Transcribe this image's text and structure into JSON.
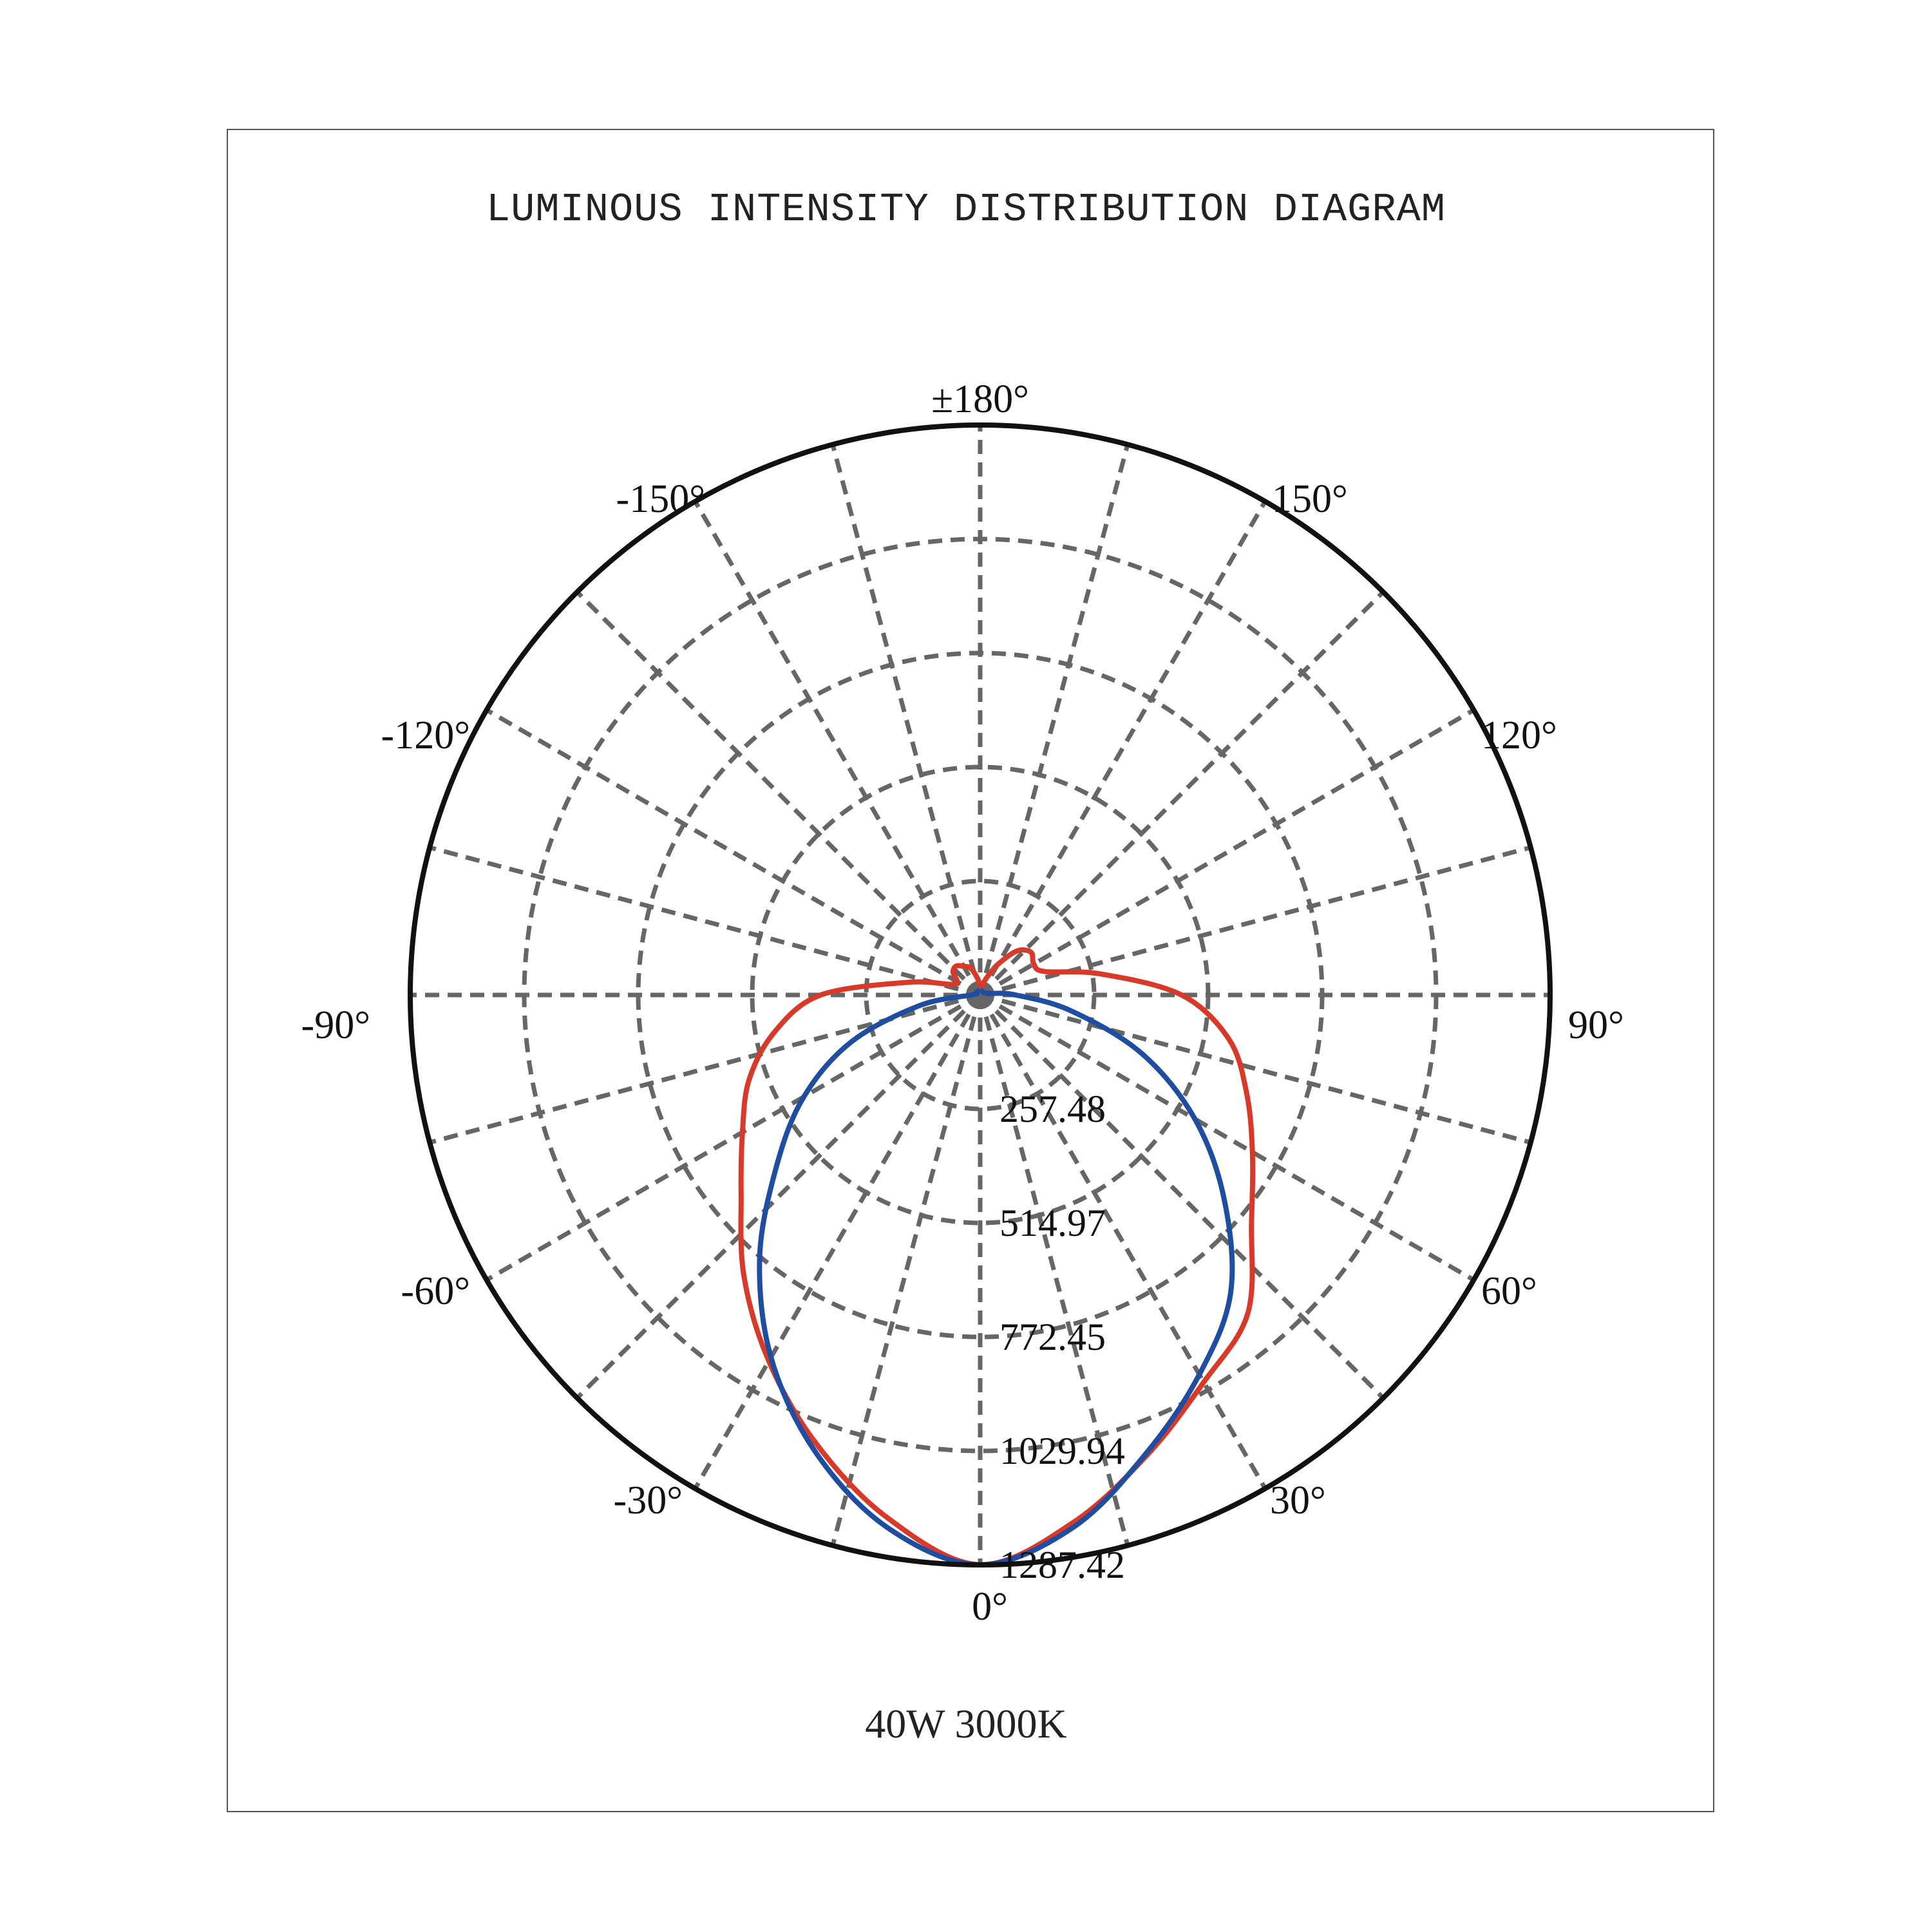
{
  "title": "LUMINOUS INTENSITY DISTRIBUTION DIAGRAM",
  "caption": "40W 3000K",
  "chart_data": {
    "type": "polar",
    "title": "LUMINOUS INTENSITY DISTRIBUTION DIAGRAM",
    "subtitle": "40W 3000K",
    "radial_ticks": [
      "257.48",
      "514.97",
      "772.45",
      "1029.94",
      "1287.42"
    ],
    "radial_tick_values": [
      257.48,
      514.97,
      772.45,
      1029.94,
      1287.42
    ],
    "radial_max": 1287.42,
    "angle_labels": [
      {
        "angle": 0,
        "label": "0°"
      },
      {
        "angle": 30,
        "label": "30°"
      },
      {
        "angle": 60,
        "label": "60°"
      },
      {
        "angle": 90,
        "label": "90°"
      },
      {
        "angle": 120,
        "label": "120°"
      },
      {
        "angle": 150,
        "label": "150°"
      },
      {
        "angle": 180,
        "label": "±180°"
      },
      {
        "angle": -150,
        "label": "-150°"
      },
      {
        "angle": -120,
        "label": "-120°"
      },
      {
        "angle": -90,
        "label": "-90°"
      },
      {
        "angle": -60,
        "label": "-60°"
      },
      {
        "angle": -30,
        "label": "-30°"
      }
    ],
    "spoke_step_deg": 15,
    "grid": true,
    "series": [
      {
        "color": "#d83a2a",
        "angles": [
          -180,
          -170,
          -160,
          -150,
          -140,
          -130,
          -120,
          -110,
          -100,
          -90,
          -80,
          -70,
          -60,
          -50,
          -40,
          -30,
          -20,
          -10,
          0,
          10,
          20,
          30,
          40,
          50,
          60,
          70,
          80,
          90,
          100,
          110,
          120,
          130,
          140,
          150,
          160,
          170,
          180
        ],
        "values": [
          20,
          40,
          65,
          75,
          85,
          80,
          60,
          70,
          165,
          360,
          470,
          555,
          620,
          705,
          830,
          955,
          1080,
          1200,
          1287,
          1210,
          1105,
          1010,
          940,
          800,
          710,
          640,
          570,
          455,
          275,
          155,
          140,
          150,
          130,
          80,
          40,
          20,
          20
        ]
      },
      {
        "color": "#1f4ea0",
        "angles": [
          -180,
          -150,
          -120,
          -100,
          -90,
          -80,
          -70,
          -60,
          -50,
          -40,
          -30,
          -20,
          -10,
          0,
          10,
          20,
          30,
          40,
          50,
          60,
          70,
          80,
          90,
          100,
          120,
          150,
          180
        ],
        "values": [
          10,
          10,
          10,
          10,
          20,
          140,
          310,
          460,
          600,
          775,
          945,
          1095,
          1220,
          1287,
          1220,
          1100,
          990,
          880,
          720,
          560,
          390,
          210,
          80,
          20,
          10,
          10,
          10
        ]
      }
    ]
  }
}
